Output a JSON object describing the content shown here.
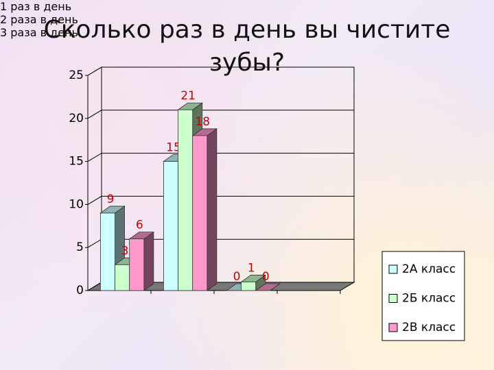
{
  "chart_data": {
    "type": "bar3d",
    "title": "Сколько раз в день вы чистите зубы?",
    "categories": [
      "1 раз в день",
      "2 раза в день",
      "3 раза в день",
      null
    ],
    "series": [
      {
        "name": "2А класс",
        "color": "#ccffff",
        "values": [
          9,
          15,
          0,
          null
        ]
      },
      {
        "name": "2Б класс",
        "color": "#ccffcc",
        "values": [
          3,
          21,
          1,
          null
        ]
      },
      {
        "name": "2В класс",
        "color": "#ff99cc",
        "values": [
          6,
          18,
          0,
          null
        ]
      }
    ],
    "ylim": [
      0,
      25
    ],
    "yticks": [
      0,
      5,
      10,
      15,
      20,
      25
    ],
    "grid": true,
    "legend": "right"
  }
}
